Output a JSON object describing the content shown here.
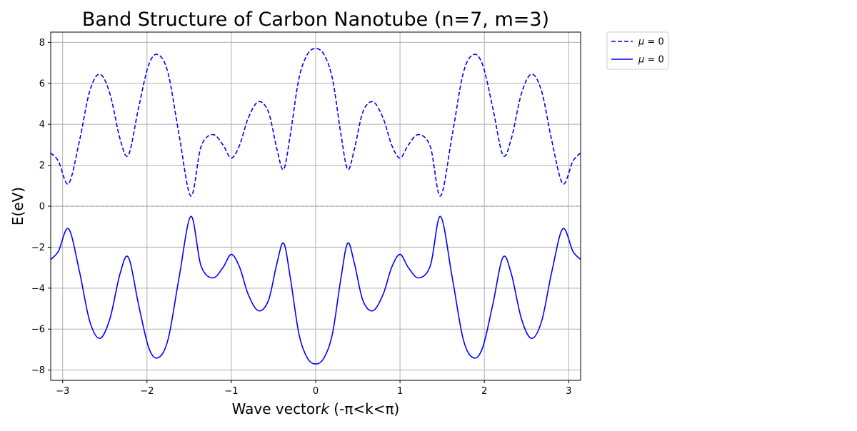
{
  "chart_data": {
    "type": "line",
    "title": "Band Structure of Carbon Nanotube (n=7, m=3)",
    "xlabel": "Wave vector",
    "xlabel_italic": "k",
    "xlabel_suffix": " (-π<k<π)",
    "ylabel": "E(eV)",
    "xlim": [
      -3.14159,
      3.14159
    ],
    "ylim": [
      -8.5,
      8.5
    ],
    "xticks": [
      -3,
      -2,
      -1,
      0,
      1,
      2,
      3
    ],
    "yticks": [
      -8,
      -6,
      -4,
      -2,
      0,
      2,
      4,
      6,
      8
    ],
    "xtick_labels": [
      "−3",
      "−2",
      "−1",
      "0",
      "1",
      "2",
      "3"
    ],
    "ytick_labels": [
      "−8",
      "−6",
      "−4",
      "−2",
      "0",
      "2",
      "4",
      "6",
      "8"
    ],
    "grid": true,
    "zero_line": {
      "y": 0,
      "color": "#808080",
      "style": "dashed"
    },
    "legend": {
      "placement": "outside-top-right",
      "entries": [
        {
          "label_symbol": "μ",
          "label_rest": " = 0",
          "style": "dashed",
          "color": "#0000ff"
        },
        {
          "label_symbol": "μ",
          "label_rest": " = 0",
          "style": "solid",
          "color": "#0000ff"
        }
      ]
    },
    "series": [
      {
        "style": "dashed",
        "color": "#0000ff",
        "band": "conduction",
        "x": [
          -3.1416,
          -3.05,
          -2.93,
          -2.8,
          -2.68,
          -2.56,
          -2.44,
          -2.32,
          -2.22,
          -2.1,
          -1.98,
          -1.87,
          -1.75,
          -1.62,
          -1.48,
          -1.36,
          -1.22,
          -1.1,
          -1.0,
          -0.9,
          -0.8,
          -0.68,
          -0.56,
          -0.46,
          -0.38,
          -0.3,
          -0.2,
          -0.1,
          0.0,
          0.1,
          0.2,
          0.3,
          0.38,
          0.46,
          0.56,
          0.68,
          0.8,
          0.9,
          1.0,
          1.1,
          1.22,
          1.36,
          1.48,
          1.62,
          1.75,
          1.87,
          1.98,
          2.1,
          2.22,
          2.32,
          2.44,
          2.56,
          2.68,
          2.8,
          2.93,
          3.05,
          3.1416
        ],
        "y": [
          2.6,
          2.2,
          1.1,
          3.2,
          5.6,
          6.45,
          5.5,
          3.3,
          2.5,
          4.8,
          6.9,
          7.4,
          6.5,
          3.5,
          0.5,
          2.9,
          3.5,
          3.0,
          2.35,
          3.0,
          4.3,
          5.1,
          4.6,
          2.8,
          1.8,
          3.5,
          6.2,
          7.4,
          7.7,
          7.4,
          6.2,
          3.5,
          1.8,
          2.8,
          4.6,
          5.1,
          4.3,
          3.0,
          2.35,
          3.0,
          3.5,
          2.9,
          0.5,
          3.5,
          6.5,
          7.4,
          6.9,
          4.8,
          2.5,
          3.3,
          5.5,
          6.45,
          5.6,
          3.2,
          1.1,
          2.2,
          2.6
        ]
      },
      {
        "style": "solid",
        "color": "#0000ff",
        "band": "valence",
        "x": [
          -3.1416,
          -3.05,
          -2.93,
          -2.8,
          -2.68,
          -2.56,
          -2.44,
          -2.32,
          -2.22,
          -2.1,
          -1.98,
          -1.87,
          -1.75,
          -1.62,
          -1.48,
          -1.36,
          -1.22,
          -1.1,
          -1.0,
          -0.9,
          -0.8,
          -0.68,
          -0.56,
          -0.46,
          -0.38,
          -0.3,
          -0.2,
          -0.1,
          0.0,
          0.1,
          0.2,
          0.3,
          0.38,
          0.46,
          0.56,
          0.68,
          0.8,
          0.9,
          1.0,
          1.1,
          1.22,
          1.36,
          1.48,
          1.62,
          1.75,
          1.87,
          1.98,
          2.1,
          2.22,
          2.32,
          2.44,
          2.56,
          2.68,
          2.8,
          2.93,
          3.05,
          3.1416
        ],
        "y": [
          -2.6,
          -2.2,
          -1.1,
          -3.2,
          -5.6,
          -6.45,
          -5.5,
          -3.3,
          -2.5,
          -4.8,
          -6.9,
          -7.4,
          -6.5,
          -3.5,
          -0.5,
          -2.9,
          -3.5,
          -3.0,
          -2.35,
          -3.0,
          -4.3,
          -5.1,
          -4.6,
          -2.8,
          -1.8,
          -3.5,
          -6.2,
          -7.4,
          -7.7,
          -7.4,
          -6.2,
          -3.5,
          -1.8,
          -2.8,
          -4.6,
          -5.1,
          -4.3,
          -3.0,
          -2.35,
          -3.0,
          -3.5,
          -2.9,
          -0.5,
          -3.5,
          -6.5,
          -7.4,
          -6.9,
          -4.8,
          -2.5,
          -3.3,
          -5.5,
          -6.45,
          -5.6,
          -3.2,
          -1.1,
          -2.2,
          -2.6
        ]
      }
    ]
  }
}
